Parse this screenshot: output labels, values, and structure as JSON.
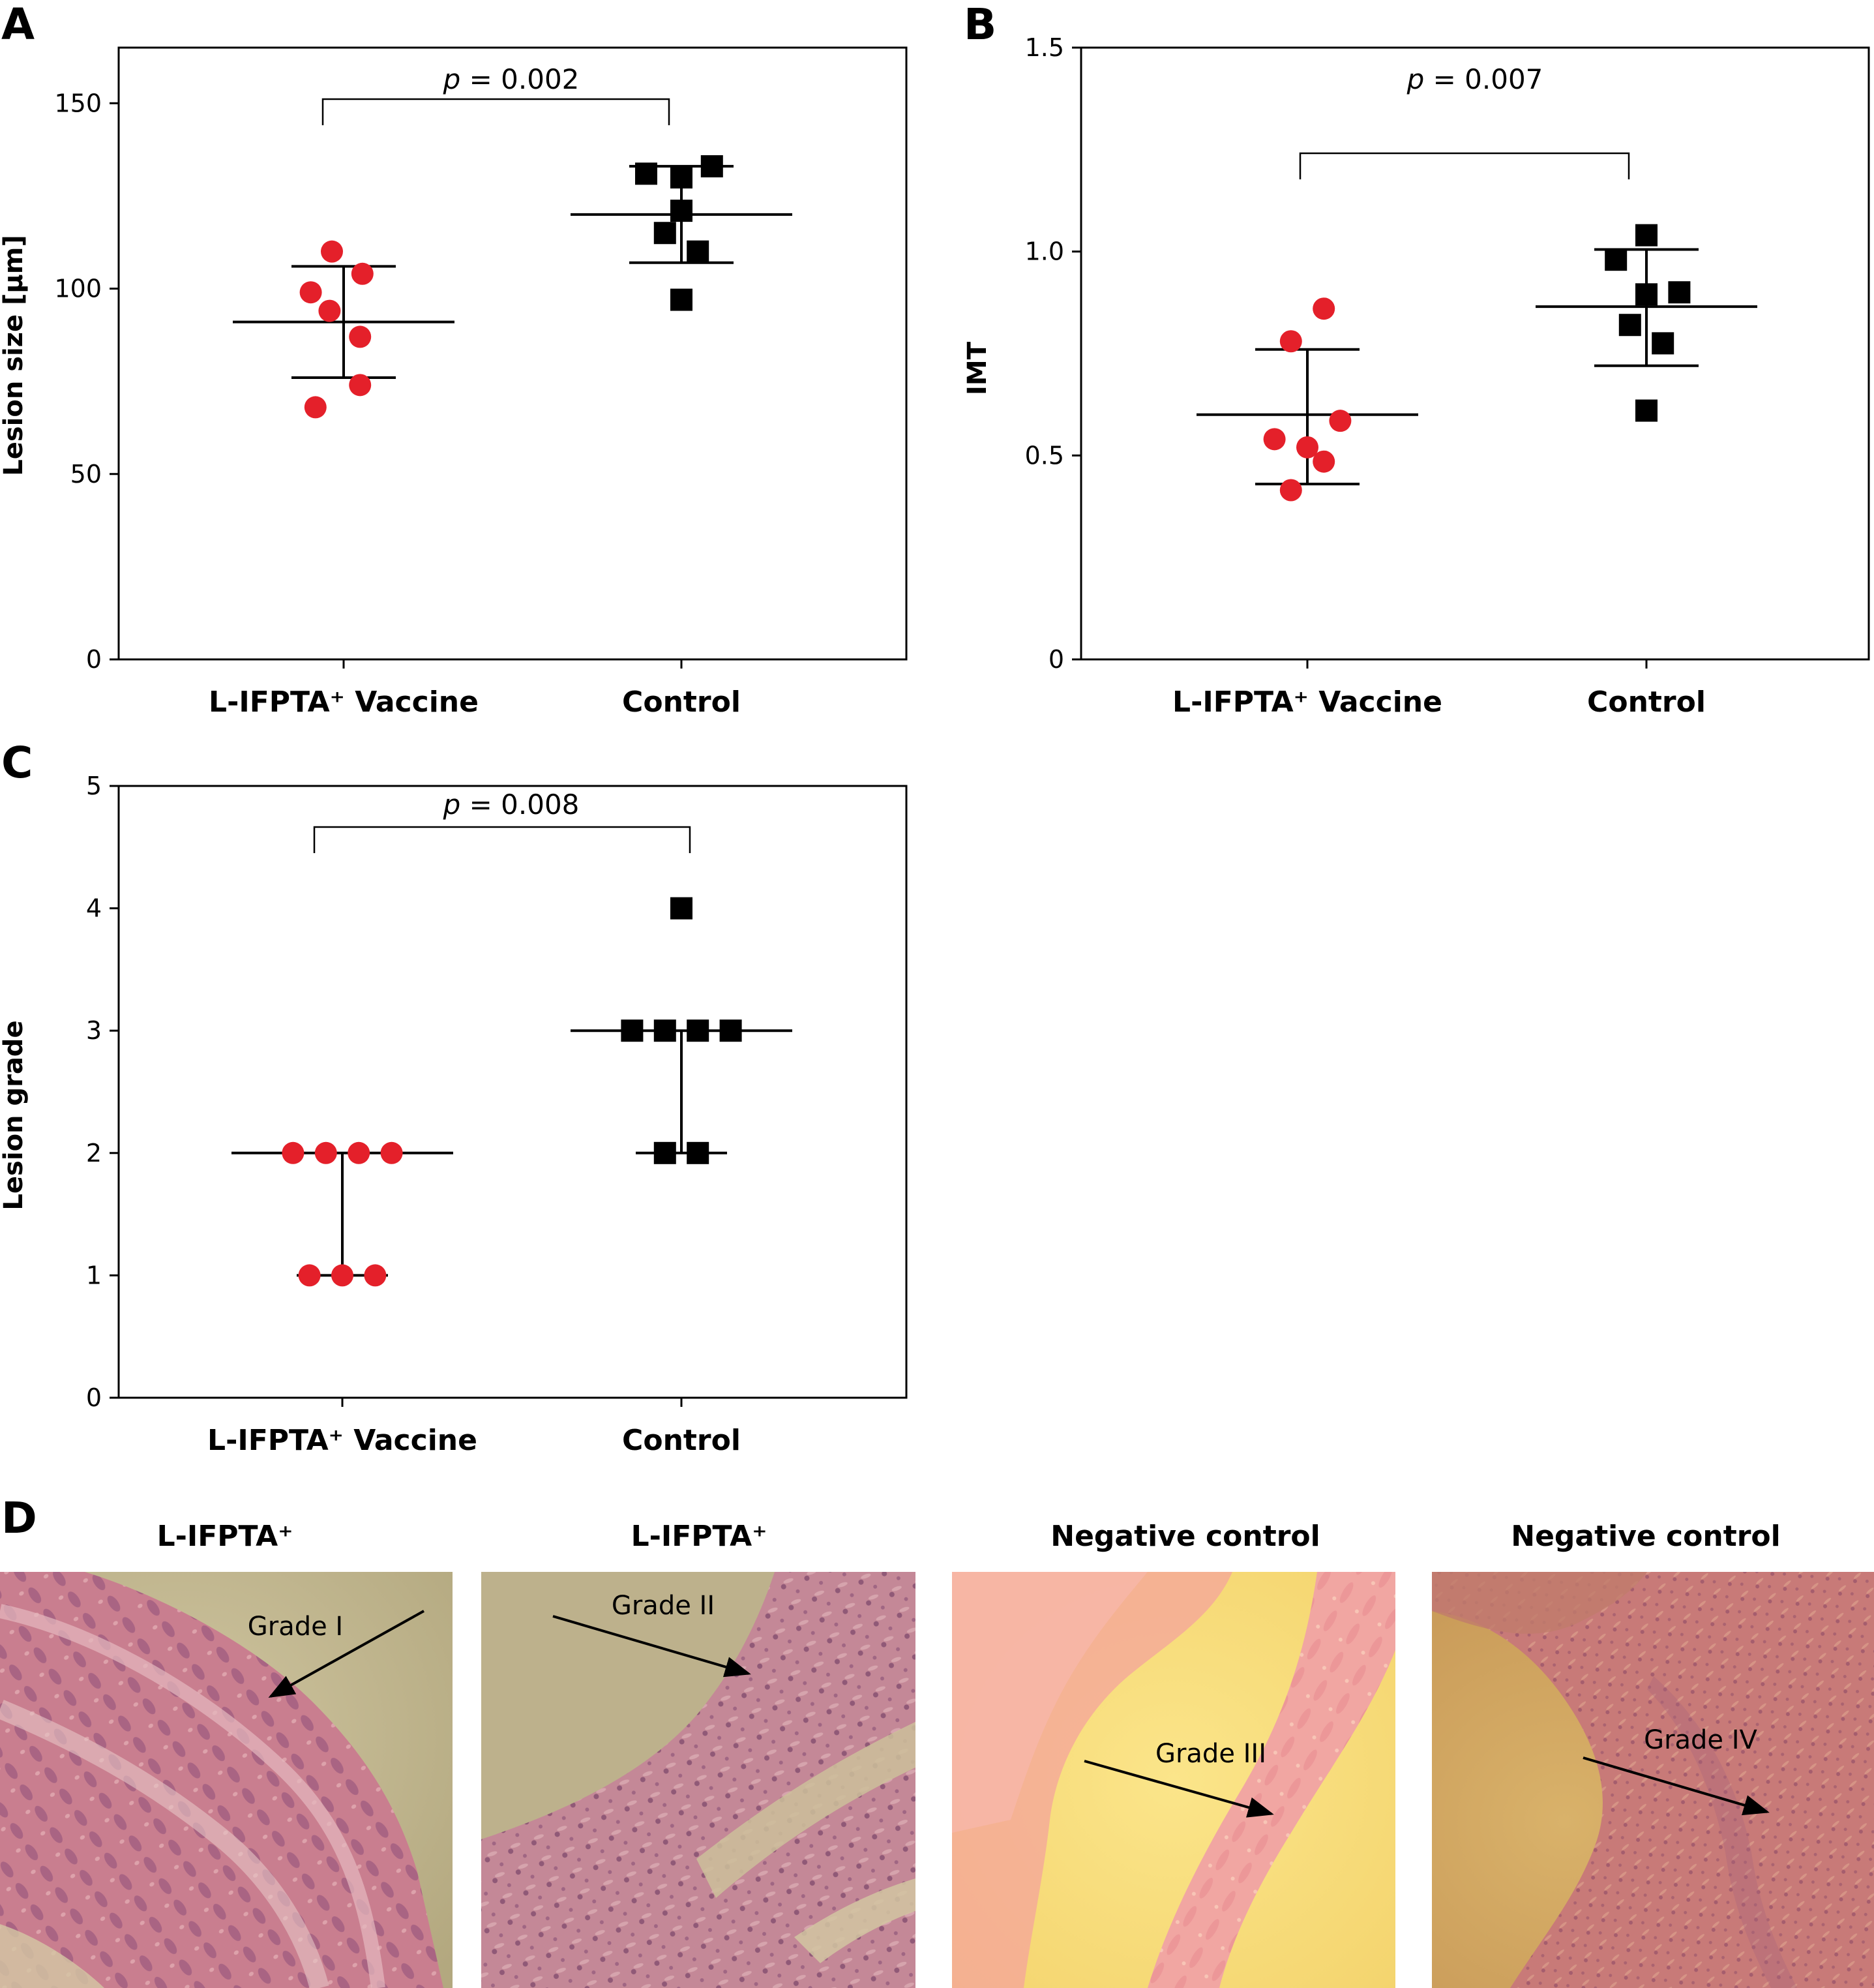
{
  "colors": {
    "vaccine": "#e4202a",
    "control": "#000000",
    "axis": "#000000"
  },
  "chart_data": [
    {
      "panel": "A",
      "type": "scatter",
      "categories": [
        "L-IFPTA⁺ Vaccine",
        "Control"
      ],
      "xlabel": "",
      "ylabel": "Lesion size [μm]",
      "ylim": [
        0,
        165
      ],
      "yticks": [
        "0",
        "50",
        "100",
        "150"
      ],
      "grid": false,
      "p_value_prefix": "p",
      "p_value_text": " = 0.002",
      "series": [
        {
          "marker": "circle",
          "color": "#e4202a",
          "points": [
            {
              "x": -0.12,
              "y": 68
            },
            {
              "x": -0.05,
              "y": 110
            },
            {
              "x": -0.14,
              "y": 99
            },
            {
              "x": -0.06,
              "y": 94
            },
            {
              "x": 0.08,
              "y": 104
            },
            {
              "x": 0.07,
              "y": 87
            },
            {
              "x": 0.07,
              "y": 74
            }
          ],
          "mean": 91,
          "error_low": 76,
          "error_high": 106
        },
        {
          "marker": "square",
          "color": "#000000",
          "points": [
            {
              "x": -0.15,
              "y": 131
            },
            {
              "x": 0.0,
              "y": 130
            },
            {
              "x": 0.13,
              "y": 133
            },
            {
              "x": 0.0,
              "y": 121
            },
            {
              "x": -0.07,
              "y": 115
            },
            {
              "x": 0.07,
              "y": 110
            },
            {
              "x": 0.0,
              "y": 97
            }
          ],
          "mean": 120,
          "error_low": 107,
          "error_high": 133
        }
      ]
    },
    {
      "panel": "B",
      "type": "scatter",
      "categories": [
        "L-IFPTA⁺ Vaccine",
        "Control"
      ],
      "xlabel": "",
      "ylabel": "IMT",
      "ylim": [
        0,
        1.5
      ],
      "yticks": [
        "0",
        "0.5",
        "1.0",
        "1.5"
      ],
      "grid": false,
      "p_value_prefix": "p",
      "p_value_text": " = 0.007",
      "series": [
        {
          "marker": "circle",
          "color": "#e4202a",
          "points": [
            {
              "x": 0.07,
              "y": 0.86
            },
            {
              "x": -0.07,
              "y": 0.78
            },
            {
              "x": 0.14,
              "y": 0.585
            },
            {
              "x": -0.14,
              "y": 0.54
            },
            {
              "x": 0.0,
              "y": 0.52
            },
            {
              "x": 0.07,
              "y": 0.485
            },
            {
              "x": -0.07,
              "y": 0.415
            }
          ],
          "mean": 0.6,
          "error_low": 0.43,
          "error_high": 0.76
        },
        {
          "marker": "square",
          "color": "#000000",
          "points": [
            {
              "x": 0.0,
              "y": 1.04
            },
            {
              "x": -0.13,
              "y": 0.98
            },
            {
              "x": 0.14,
              "y": 0.9
            },
            {
              "x": 0.0,
              "y": 0.895
            },
            {
              "x": -0.07,
              "y": 0.82
            },
            {
              "x": 0.07,
              "y": 0.775
            },
            {
              "x": 0.0,
              "y": 0.61
            }
          ],
          "mean": 0.865,
          "error_low": 0.72,
          "error_high": 1.005
        }
      ]
    },
    {
      "panel": "C",
      "type": "scatter",
      "categories": [
        "L-IFPTA⁺ Vaccine",
        "Control"
      ],
      "xlabel": "",
      "ylabel": "Lesion grade",
      "ylim": [
        0,
        5
      ],
      "yticks": [
        "0",
        "1",
        "2",
        "3",
        "4",
        "5"
      ],
      "grid": false,
      "p_value_prefix": "p",
      "p_value_text": " = 0.008",
      "series": [
        {
          "marker": "circle",
          "color": "#e4202a",
          "points": [
            {
              "x": -0.21,
              "y": 2
            },
            {
              "x": -0.07,
              "y": 2
            },
            {
              "x": 0.07,
              "y": 2
            },
            {
              "x": 0.21,
              "y": 2
            },
            {
              "x": -0.14,
              "y": 1
            },
            {
              "x": 0.0,
              "y": 1
            },
            {
              "x": 0.14,
              "y": 1
            }
          ],
          "median": 2,
          "error_low": 1,
          "error_high": 2
        },
        {
          "marker": "square",
          "color": "#000000",
          "points": [
            {
              "x": 0.0,
              "y": 4
            },
            {
              "x": -0.21,
              "y": 3
            },
            {
              "x": -0.07,
              "y": 3
            },
            {
              "x": 0.07,
              "y": 3
            },
            {
              "x": 0.21,
              "y": 3
            },
            {
              "x": -0.07,
              "y": 2
            },
            {
              "x": 0.07,
              "y": 2
            }
          ],
          "median": 3,
          "error_low": 2,
          "error_high": 3
        }
      ]
    }
  ],
  "panel_d": {
    "letter": "D",
    "images": [
      {
        "title": "L-IFPTA⁺",
        "grade": "Grade I"
      },
      {
        "title": "L-IFPTA⁺",
        "grade": "Grade II"
      },
      {
        "title": "Negative control",
        "grade": "Grade III"
      },
      {
        "title": "Negative control",
        "grade": "Grade IV"
      }
    ]
  }
}
